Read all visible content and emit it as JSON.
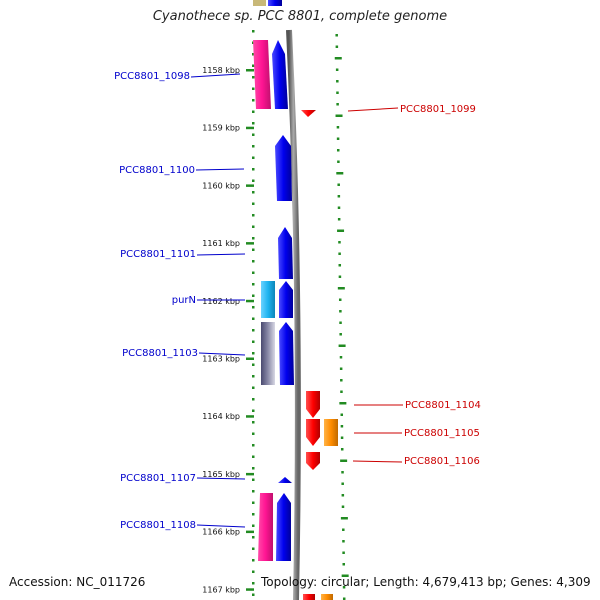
{
  "title": "Cyanothece sp. PCC 8801, complete genome",
  "footer": {
    "accession": "Accession: NC_011726",
    "summary": "Topology: circular; Length: 4,679,413 bp; Genes: 4,309"
  },
  "kbp_labels": [
    {
      "text": "1158 kbp",
      "y": 1158.0
    },
    {
      "text": "1159 kbp",
      "y": 1159.0
    },
    {
      "text": "1160 kbp",
      "y": 1160.0
    },
    {
      "text": "1161 kbp",
      "y": 1161.0
    },
    {
      "text": "1162 kbp",
      "y": 1162.0
    },
    {
      "text": "1163 kbp",
      "y": 1163.0
    },
    {
      "text": "1164 kbp",
      "y": 1164.0
    },
    {
      "text": "1165 kbp",
      "y": 1165.0
    },
    {
      "text": "1166 kbp",
      "y": 1166.0
    },
    {
      "text": "1167 kbp",
      "y": 1167.0
    }
  ],
  "genes_forward": [
    {
      "label": "PCC8801_1098"
    },
    {
      "label": "PCC8801_1100"
    },
    {
      "label": "PCC8801_1101"
    },
    {
      "label": "purN"
    },
    {
      "label": "PCC8801_1103"
    },
    {
      "label": "PCC8801_1107"
    },
    {
      "label": "PCC8801_1108"
    }
  ],
  "genes_reverse": [
    {
      "label": "PCC8801_1099"
    },
    {
      "label": "PCC8801_1104"
    },
    {
      "label": "PCC8801_1105"
    },
    {
      "label": "PCC8801_1106"
    }
  ],
  "colors": {
    "forward_label": "#0000cc",
    "reverse_label": "#cc0000",
    "gene_blue": "#0000ee",
    "gene_red": "#ff0000",
    "gene_pink": "#ff1493",
    "gene_cyan": "#1eb4f0",
    "gene_orange": "#ff8c00",
    "gene_grey": "#6a6a8a",
    "tick_green": "#228b22",
    "backbone": "#888888"
  }
}
